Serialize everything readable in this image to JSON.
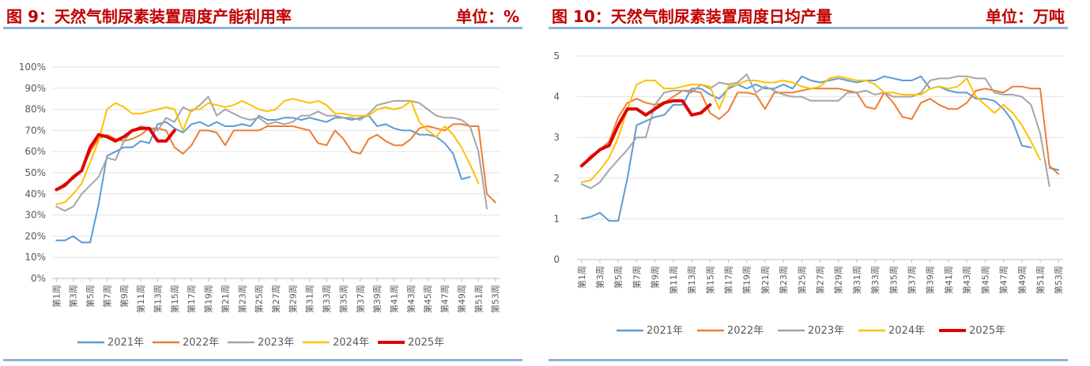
{
  "chart_data": [
    {
      "type": "line",
      "title": "图 9：天然气制尿素装置周度产能利用率",
      "unit": "单位：%",
      "ylim": [
        0,
        100
      ],
      "y_ticks": [
        "0%",
        "10%",
        "20%",
        "30%",
        "40%",
        "50%",
        "60%",
        "70%",
        "80%",
        "90%",
        "100%"
      ],
      "x_ticks": [
        "第1周",
        "第3周",
        "第5周",
        "第7周",
        "第9周",
        "第11周",
        "第13周",
        "第15周",
        "第17周",
        "第19周",
        "第21周",
        "第23周",
        "第25周",
        "第27周",
        "第29周",
        "第31周",
        "第33周",
        "第35周",
        "第37周",
        "第39周",
        "第41周",
        "第43周",
        "第45周",
        "第47周",
        "第49周",
        "第51周",
        "第53周"
      ],
      "series": [
        {
          "name": "2021年",
          "color": "#5b9bd5",
          "values": [
            18,
            18,
            20,
            17,
            17,
            35,
            58,
            60,
            62,
            62,
            65,
            64,
            73,
            74,
            71,
            69,
            73,
            74,
            72,
            74,
            72,
            72,
            73,
            72,
            77,
            75,
            75,
            76,
            76,
            75,
            76,
            75,
            74,
            76,
            76,
            75,
            76,
            77,
            72,
            73,
            71,
            70,
            70,
            68,
            68,
            67,
            64,
            59,
            47,
            48,
            null,
            null,
            null
          ]
        },
        {
          "name": "2022年",
          "color": "#ed7d31",
          "values": [
            42,
            45,
            47,
            51,
            60,
            66,
            68,
            66,
            65,
            66,
            68,
            71,
            71,
            70,
            62,
            59,
            63,
            70,
            70,
            69,
            63,
            70,
            70,
            70,
            70,
            72,
            72,
            72,
            72,
            71,
            70,
            64,
            63,
            70,
            66,
            60,
            59,
            66,
            68,
            65,
            63,
            63,
            66,
            71,
            72,
            71,
            70,
            73,
            73,
            72,
            72,
            40,
            36
          ]
        },
        {
          "name": "2023年",
          "color": "#a5a5a5",
          "values": [
            34,
            32,
            34,
            40,
            44,
            48,
            57,
            56,
            65,
            70,
            72,
            71,
            70,
            76,
            74,
            81,
            79,
            82,
            86,
            77,
            80,
            78,
            76,
            75,
            76,
            73,
            74,
            73,
            74,
            77,
            77,
            79,
            77,
            77,
            76,
            76,
            75,
            78,
            82,
            83,
            84,
            84,
            84,
            83,
            80,
            77,
            76,
            76,
            75,
            72,
            60,
            33,
            null
          ]
        },
        {
          "name": "2024年",
          "color": "#ffc000",
          "values": [
            35,
            36,
            40,
            45,
            55,
            65,
            80,
            83,
            81,
            78,
            78,
            79,
            80,
            81,
            80,
            70,
            80,
            80,
            83,
            82,
            81,
            82,
            84,
            82,
            80,
            79,
            80,
            84,
            85,
            84,
            83,
            84,
            82,
            78,
            78,
            77,
            77,
            77,
            80,
            81,
            80,
            81,
            84,
            74,
            70,
            67,
            72,
            68,
            62,
            54,
            45,
            null,
            null
          ]
        },
        {
          "name": "2025年",
          "color": "#e00000",
          "values": [
            42,
            44,
            48,
            51,
            62,
            68,
            67,
            65,
            67,
            70,
            71,
            71,
            65,
            65,
            70,
            null,
            null,
            null,
            null,
            null,
            null,
            null,
            null,
            null,
            null,
            null,
            null,
            null,
            null,
            null,
            null,
            null,
            null,
            null,
            null,
            null,
            null,
            null,
            null,
            null,
            null,
            null,
            null,
            null,
            null,
            null,
            null,
            null,
            null,
            null,
            null,
            null,
            null
          ]
        }
      ]
    },
    {
      "type": "line",
      "title": "图 10：天然气制尿素装置周度日均产量",
      "unit": "单位：万吨",
      "ylim": [
        0,
        5
      ],
      "y_ticks": [
        "0",
        "1",
        "2",
        "3",
        "4",
        "5"
      ],
      "x_ticks": [
        "第1周",
        "第3周",
        "第5周",
        "第7周",
        "第9周",
        "第11周",
        "第13周",
        "第15周",
        "第17周",
        "第19周",
        "第21周",
        "第23周",
        "第25周",
        "第27周",
        "第29周",
        "第31周",
        "第33周",
        "第35周",
        "第37周",
        "第39周",
        "第41周",
        "第43周",
        "第45周",
        "第47周",
        "第49周",
        "第51周",
        "第53周"
      ],
      "series": [
        {
          "name": "2021年",
          "color": "#5b9bd5",
          "values": [
            1.0,
            1.05,
            1.15,
            0.95,
            0.95,
            2.0,
            3.3,
            3.4,
            3.5,
            3.55,
            3.8,
            3.8,
            4.2,
            4.2,
            4.05,
            3.95,
            4.2,
            4.3,
            4.2,
            4.3,
            4.2,
            4.2,
            4.3,
            4.2,
            4.5,
            4.4,
            4.35,
            4.4,
            4.45,
            4.4,
            4.35,
            4.4,
            4.4,
            4.5,
            4.45,
            4.4,
            4.4,
            4.5,
            4.2,
            4.25,
            4.15,
            4.1,
            4.1,
            3.95,
            3.95,
            3.9,
            3.7,
            3.4,
            2.8,
            2.75,
            null,
            2.25,
            2.2
          ]
        },
        {
          "name": "2022年",
          "color": "#ed7d31",
          "values": [
            2.3,
            2.55,
            2.7,
            2.9,
            3.5,
            3.85,
            3.95,
            3.85,
            3.8,
            3.85,
            4.0,
            4.15,
            4.15,
            4.1,
            3.6,
            3.45,
            3.65,
            4.1,
            4.1,
            4.05,
            3.7,
            4.1,
            4.1,
            4.1,
            4.15,
            4.2,
            4.2,
            4.2,
            4.2,
            4.15,
            4.1,
            3.75,
            3.7,
            4.1,
            3.85,
            3.5,
            3.45,
            3.85,
            3.95,
            3.8,
            3.7,
            3.7,
            3.85,
            4.15,
            4.2,
            4.15,
            4.1,
            4.25,
            4.25,
            4.2,
            4.2,
            2.3,
            2.1
          ]
        },
        {
          "name": "2023年",
          "color": "#a5a5a5",
          "values": [
            1.85,
            1.75,
            1.9,
            2.2,
            2.45,
            2.7,
            3.0,
            3.0,
            3.8,
            4.1,
            4.15,
            4.15,
            4.1,
            4.3,
            4.2,
            4.35,
            4.3,
            4.35,
            4.55,
            4.1,
            4.25,
            4.15,
            4.05,
            4.0,
            4.0,
            3.9,
            3.9,
            3.9,
            3.9,
            4.1,
            4.1,
            4.15,
            4.05,
            4.1,
            4.0,
            4.0,
            4.0,
            4.1,
            4.4,
            4.45,
            4.45,
            4.5,
            4.5,
            4.45,
            4.45,
            4.1,
            4.05,
            4.05,
            4.0,
            3.8,
            3.1,
            1.8,
            null
          ]
        },
        {
          "name": "2024年",
          "color": "#ffc000",
          "values": [
            1.9,
            1.95,
            2.2,
            2.5,
            3.0,
            3.7,
            4.3,
            4.4,
            4.4,
            4.2,
            4.2,
            4.25,
            4.3,
            4.3,
            4.25,
            3.7,
            4.25,
            4.3,
            4.4,
            4.4,
            4.35,
            4.35,
            4.4,
            4.35,
            4.25,
            4.2,
            4.25,
            4.45,
            4.5,
            4.45,
            4.4,
            4.4,
            4.3,
            4.1,
            4.1,
            4.05,
            4.05,
            4.05,
            4.2,
            4.25,
            4.2,
            4.25,
            4.45,
            4.0,
            3.8,
            3.6,
            3.8,
            3.6,
            3.3,
            2.9,
            2.45,
            null,
            null
          ]
        },
        {
          "name": "2025年",
          "color": "#e00000",
          "values": [
            2.3,
            2.5,
            2.7,
            2.8,
            3.3,
            3.7,
            3.7,
            3.55,
            3.7,
            3.85,
            3.9,
            3.9,
            3.55,
            3.6,
            3.8,
            null,
            null,
            null,
            null,
            null,
            null,
            null,
            null,
            null,
            null,
            null,
            null,
            null,
            null,
            null,
            null,
            null,
            null,
            null,
            null,
            null,
            null,
            null,
            null,
            null,
            null,
            null,
            null,
            null,
            null,
            null,
            null,
            null,
            null,
            null,
            null,
            null,
            null
          ]
        }
      ]
    }
  ]
}
